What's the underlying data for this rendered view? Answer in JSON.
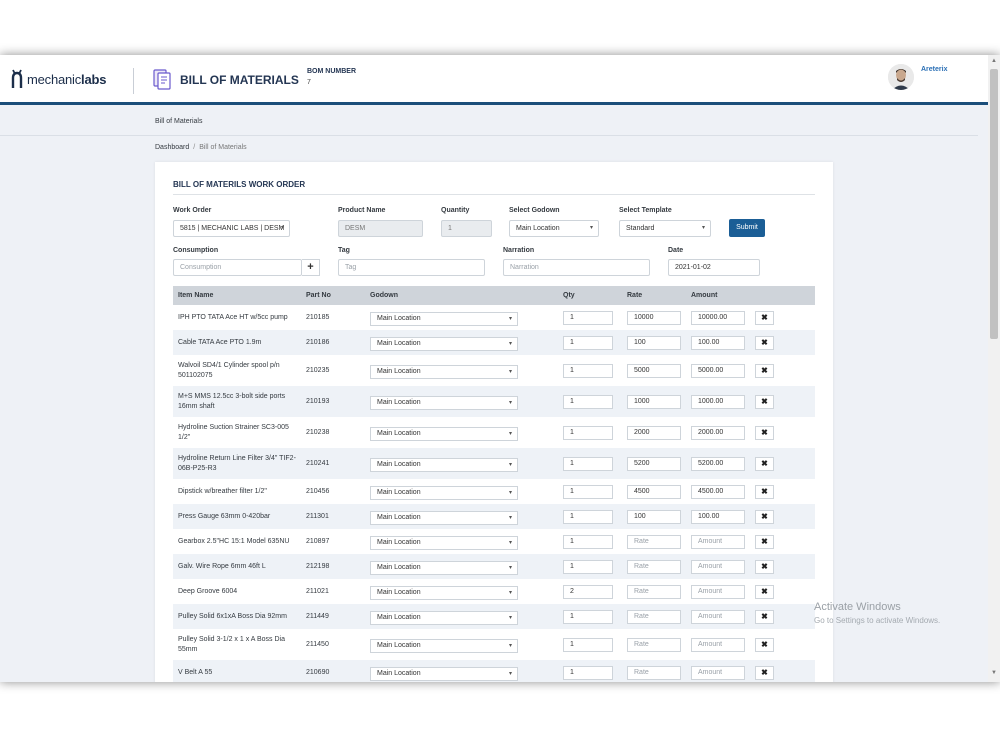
{
  "brand": {
    "name_light": "mechanic",
    "name_bold": "labs"
  },
  "header": {
    "title": "BILL OF MATERIALS",
    "bom_label": "BOM NUMBER",
    "bom_value": "7",
    "user_name": "Areterix"
  },
  "page": {
    "section_label": "Bill of Materials",
    "breadcrumb": {
      "home": "Dashboard",
      "separator": "/",
      "current": "Bill of Materials"
    }
  },
  "form": {
    "title": "BILL OF MATERILS WORK ORDER",
    "work_order": {
      "label": "Work Order",
      "value": "5815 | MECHANIC LABS | DESM"
    },
    "product_name": {
      "label": "Product Name",
      "value": "DESM"
    },
    "quantity": {
      "label": "Quantity",
      "value": "1"
    },
    "godown": {
      "label": "Select Godown",
      "value": "Main Location"
    },
    "template": {
      "label": "Select Template",
      "value": "Standard"
    },
    "submit_label": "Submit",
    "consumption": {
      "label": "Consumption",
      "placeholder": "Consumption"
    },
    "tag": {
      "label": "Tag",
      "placeholder": "Tag"
    },
    "narration": {
      "label": "Narration",
      "placeholder": "Narration"
    },
    "date": {
      "label": "Date",
      "value": "2021-01-02"
    }
  },
  "table": {
    "columns": [
      "Item Name",
      "Part No",
      "Godown",
      "Qty",
      "Rate",
      "Amount"
    ],
    "rows": [
      {
        "item": "IPH PTO TATA Ace HT w/5cc pump",
        "part": "210185",
        "godown": "Main Location",
        "qty": "1",
        "rate": "10000",
        "amount": "10000.00"
      },
      {
        "item": "Cable TATA Ace PTO 1.9m",
        "part": "210186",
        "godown": "Main Location",
        "qty": "1",
        "rate": "100",
        "amount": "100.00"
      },
      {
        "item": "Walvoil SD4/1 Cylinder spool p/n 501102075",
        "part": "210235",
        "godown": "Main Location",
        "qty": "1",
        "rate": "5000",
        "amount": "5000.00"
      },
      {
        "item": "M+S MMS 12.5cc 3-bolt side ports 16mm shaft",
        "part": "210193",
        "godown": "Main Location",
        "qty": "1",
        "rate": "1000",
        "amount": "1000.00"
      },
      {
        "item": "Hydroline Suction Strainer SC3-005 1/2\"",
        "part": "210238",
        "godown": "Main Location",
        "qty": "1",
        "rate": "2000",
        "amount": "2000.00"
      },
      {
        "item": "Hydroline Return Line Filter 3/4\" TIF2-06B-P25-R3",
        "part": "210241",
        "godown": "Main Location",
        "qty": "1",
        "rate": "5200",
        "amount": "5200.00"
      },
      {
        "item": "Dipstick w/breather filter 1/2\"",
        "part": "210456",
        "godown": "Main Location",
        "qty": "1",
        "rate": "4500",
        "amount": "4500.00"
      },
      {
        "item": "Press Gauge 63mm 0-420bar",
        "part": "211301",
        "godown": "Main Location",
        "qty": "1",
        "rate": "100",
        "amount": "100.00"
      },
      {
        "item": "Gearbox 2.5\"HC 15:1 Model 635NU",
        "part": "210897",
        "godown": "Main Location",
        "qty": "1",
        "rate": "",
        "amount": ""
      },
      {
        "item": "Galv. Wire Rope 6mm 46ft L",
        "part": "212198",
        "godown": "Main Location",
        "qty": "1",
        "rate": "",
        "amount": ""
      },
      {
        "item": "Deep Groove 6004",
        "part": "211021",
        "godown": "Main Location",
        "qty": "2",
        "rate": "",
        "amount": ""
      },
      {
        "item": "Pulley Solid 6x1xA Boss Dia 92mm",
        "part": "211449",
        "godown": "Main Location",
        "qty": "1",
        "rate": "",
        "amount": ""
      },
      {
        "item": "Pulley Solid 3-1/2 x 1 x A Boss Dia 55mm",
        "part": "211450",
        "godown": "Main Location",
        "qty": "1",
        "rate": "",
        "amount": ""
      },
      {
        "item": "V Belt A 55",
        "part": "210690",
        "godown": "Main Location",
        "qty": "1",
        "rate": "",
        "amount": ""
      }
    ],
    "rate_placeholder": "Rate",
    "amount_placeholder": "Amount",
    "delete_glyph": "✖"
  },
  "watermark": {
    "title": "Activate Windows",
    "subtitle": "Go to Settings to activate Windows."
  },
  "colors": {
    "accent": "#1b5e96",
    "header_rule": "#1b4e7a",
    "row_alt": "#eef2f7",
    "table_head": "#cfd4da"
  }
}
